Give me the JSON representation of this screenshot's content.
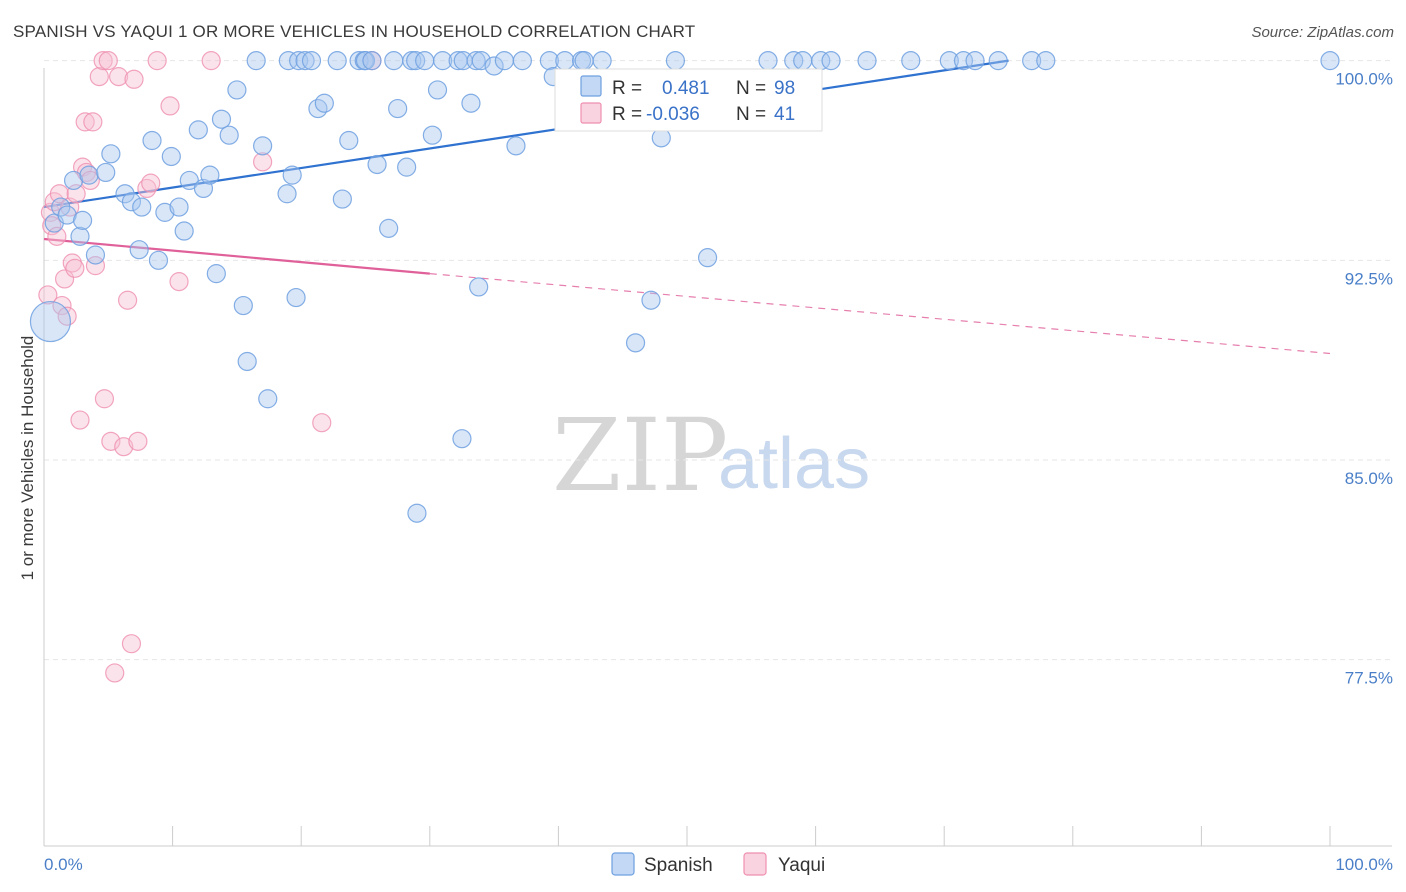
{
  "header": {
    "title": "SPANISH VS YAQUI 1 OR MORE VEHICLES IN HOUSEHOLD CORRELATION CHART",
    "source": "Source: ZipAtlas.com"
  },
  "colors": {
    "spanish": "#6fa0e0",
    "spanish_fill": "#a9c8f0",
    "spanish_line": "#2f72d0",
    "yaqui": "#ef8fb0",
    "yaqui_fill": "#f6c0d2",
    "yaqui_line": "#e0609a",
    "tick_text": "#4a7fc8",
    "grid": "#e6e6e6"
  },
  "watermark": {
    "zip": "ZIP",
    "atlas": "atlas"
  },
  "legend": {
    "rows": [
      {
        "r_label": "R =",
        "r_value": "0.481",
        "n_label": "N =",
        "n_value": "98"
      },
      {
        "r_label": "R =",
        "r_value": "-0.036",
        "n_label": "N =",
        "n_value": "41"
      }
    ]
  },
  "bottom_legend": [
    "Spanish",
    "Yaqui"
  ],
  "chart_data": {
    "type": "scatter",
    "title": "SPANISH VS YAQUI 1 OR MORE VEHICLES IN HOUSEHOLD CORRELATION CHART",
    "xlabel": "",
    "ylabel": "1 or more Vehicles in Household",
    "xlim": [
      0,
      100
    ],
    "ylim": [
      70.5,
      100.4
    ],
    "x_tick_labels": [
      "0.0%",
      "100.0%"
    ],
    "y_ticks": [
      77.5,
      85.0,
      92.5,
      100.0
    ],
    "y_tick_labels": [
      "77.5%",
      "85.0%",
      "92.5%",
      "100.0%"
    ],
    "grid": true,
    "series": [
      {
        "name": "Spanish",
        "R": 0.481,
        "N": 98,
        "trend": {
          "x": [
            0,
            75
          ],
          "y": [
            94.5,
            100.0
          ],
          "style": "solid"
        },
        "points": [
          [
            0.5,
            90.2
          ],
          [
            0.8,
            93.9
          ],
          [
            1.3,
            94.5
          ],
          [
            1.8,
            94.2
          ],
          [
            2.3,
            95.5
          ],
          [
            2.8,
            93.4
          ],
          [
            3.0,
            94.0
          ],
          [
            3.5,
            95.7
          ],
          [
            4.0,
            92.7
          ],
          [
            4.8,
            95.8
          ],
          [
            5.2,
            96.5
          ],
          [
            6.3,
            95.0
          ],
          [
            6.8,
            94.7
          ],
          [
            7.6,
            94.5
          ],
          [
            7.4,
            92.9
          ],
          [
            8.4,
            97.0
          ],
          [
            8.9,
            92.5
          ],
          [
            9.4,
            94.3
          ],
          [
            9.9,
            96.4
          ],
          [
            10.5,
            94.5
          ],
          [
            10.9,
            93.6
          ],
          [
            11.3,
            95.5
          ],
          [
            12.0,
            97.4
          ],
          [
            12.4,
            95.2
          ],
          [
            12.9,
            95.7
          ],
          [
            13.4,
            92.0
          ],
          [
            13.8,
            97.8
          ],
          [
            14.4,
            97.2
          ],
          [
            15.0,
            98.9
          ],
          [
            15.5,
            90.8
          ],
          [
            15.8,
            88.7
          ],
          [
            16.5,
            100.0
          ],
          [
            17.0,
            96.8
          ],
          [
            17.4,
            87.3
          ],
          [
            19.0,
            100.0
          ],
          [
            18.9,
            95.0
          ],
          [
            19.3,
            95.7
          ],
          [
            19.6,
            91.1
          ],
          [
            19.8,
            100.0
          ],
          [
            20.3,
            100.0
          ],
          [
            20.8,
            100.0
          ],
          [
            21.3,
            98.2
          ],
          [
            21.8,
            98.4
          ],
          [
            22.8,
            100.0
          ],
          [
            23.2,
            94.8
          ],
          [
            23.7,
            97.0
          ],
          [
            24.5,
            100.0
          ],
          [
            24.9,
            100.0
          ],
          [
            25.0,
            100.0
          ],
          [
            25.5,
            100.0
          ],
          [
            25.9,
            96.1
          ],
          [
            26.8,
            93.7
          ],
          [
            27.2,
            100.0
          ],
          [
            27.5,
            98.2
          ],
          [
            28.2,
            96.0
          ],
          [
            28.6,
            100.0
          ],
          [
            28.9,
            100.0
          ],
          [
            29.0,
            83.0
          ],
          [
            29.6,
            100.0
          ],
          [
            30.2,
            97.2
          ],
          [
            30.6,
            98.9
          ],
          [
            31.0,
            100.0
          ],
          [
            32.2,
            100.0
          ],
          [
            32.6,
            100.0
          ],
          [
            32.5,
            85.8
          ],
          [
            33.2,
            98.4
          ],
          [
            33.6,
            100.0
          ],
          [
            33.8,
            91.5
          ],
          [
            34.0,
            100.0
          ],
          [
            35.0,
            99.8
          ],
          [
            35.8,
            100.0
          ],
          [
            36.7,
            96.8
          ],
          [
            37.2,
            100.0
          ],
          [
            39.3,
            100.0
          ],
          [
            39.6,
            99.4
          ],
          [
            40.5,
            100.0
          ],
          [
            41.8,
            100.0
          ],
          [
            42.0,
            100.0
          ],
          [
            43.4,
            100.0
          ],
          [
            46.0,
            89.4
          ],
          [
            47.2,
            91.0
          ],
          [
            48.0,
            97.1
          ],
          [
            49.1,
            100.0
          ],
          [
            51.6,
            92.6
          ],
          [
            56.3,
            100.0
          ],
          [
            58.3,
            100.0
          ],
          [
            59.0,
            100.0
          ],
          [
            60.4,
            100.0
          ],
          [
            61.2,
            100.0
          ],
          [
            64.0,
            100.0
          ],
          [
            67.4,
            100.0
          ],
          [
            70.4,
            100.0
          ],
          [
            71.5,
            100.0
          ],
          [
            72.4,
            100.0
          ],
          [
            74.2,
            100.0
          ],
          [
            76.8,
            100.0
          ],
          [
            77.9,
            100.0
          ],
          [
            100.0,
            100.0
          ]
        ]
      },
      {
        "name": "Yaqui",
        "R": -0.036,
        "N": 41,
        "trend": {
          "x": [
            0,
            30,
            100
          ],
          "y": [
            93.3,
            92.0,
            89.0
          ],
          "style": "solid-then-dashed"
        },
        "points": [
          [
            0.3,
            91.2
          ],
          [
            0.5,
            94.3
          ],
          [
            0.6,
            93.8
          ],
          [
            0.8,
            94.7
          ],
          [
            1.0,
            93.4
          ],
          [
            1.2,
            95.0
          ],
          [
            1.4,
            90.8
          ],
          [
            1.6,
            91.8
          ],
          [
            1.8,
            90.4
          ],
          [
            2.0,
            94.5
          ],
          [
            2.2,
            92.4
          ],
          [
            2.4,
            92.2
          ],
          [
            2.5,
            95.0
          ],
          [
            2.8,
            86.5
          ],
          [
            3.0,
            96.0
          ],
          [
            3.2,
            97.7
          ],
          [
            3.3,
            95.8
          ],
          [
            3.6,
            95.5
          ],
          [
            3.8,
            97.7
          ],
          [
            4.0,
            92.3
          ],
          [
            4.3,
            99.4
          ],
          [
            4.6,
            100.0
          ],
          [
            4.7,
            87.3
          ],
          [
            5.0,
            100.0
          ],
          [
            5.2,
            85.7
          ],
          [
            5.5,
            77.0
          ],
          [
            5.8,
            99.4
          ],
          [
            6.2,
            85.5
          ],
          [
            6.5,
            91.0
          ],
          [
            6.8,
            78.1
          ],
          [
            7.0,
            99.3
          ],
          [
            7.3,
            85.7
          ],
          [
            8.0,
            95.2
          ],
          [
            8.3,
            95.4
          ],
          [
            8.8,
            100.0
          ],
          [
            9.8,
            98.3
          ],
          [
            10.5,
            91.7
          ],
          [
            13.0,
            100.0
          ],
          [
            17.0,
            96.2
          ],
          [
            21.6,
            86.4
          ],
          [
            25.5,
            100.0
          ]
        ]
      }
    ]
  }
}
